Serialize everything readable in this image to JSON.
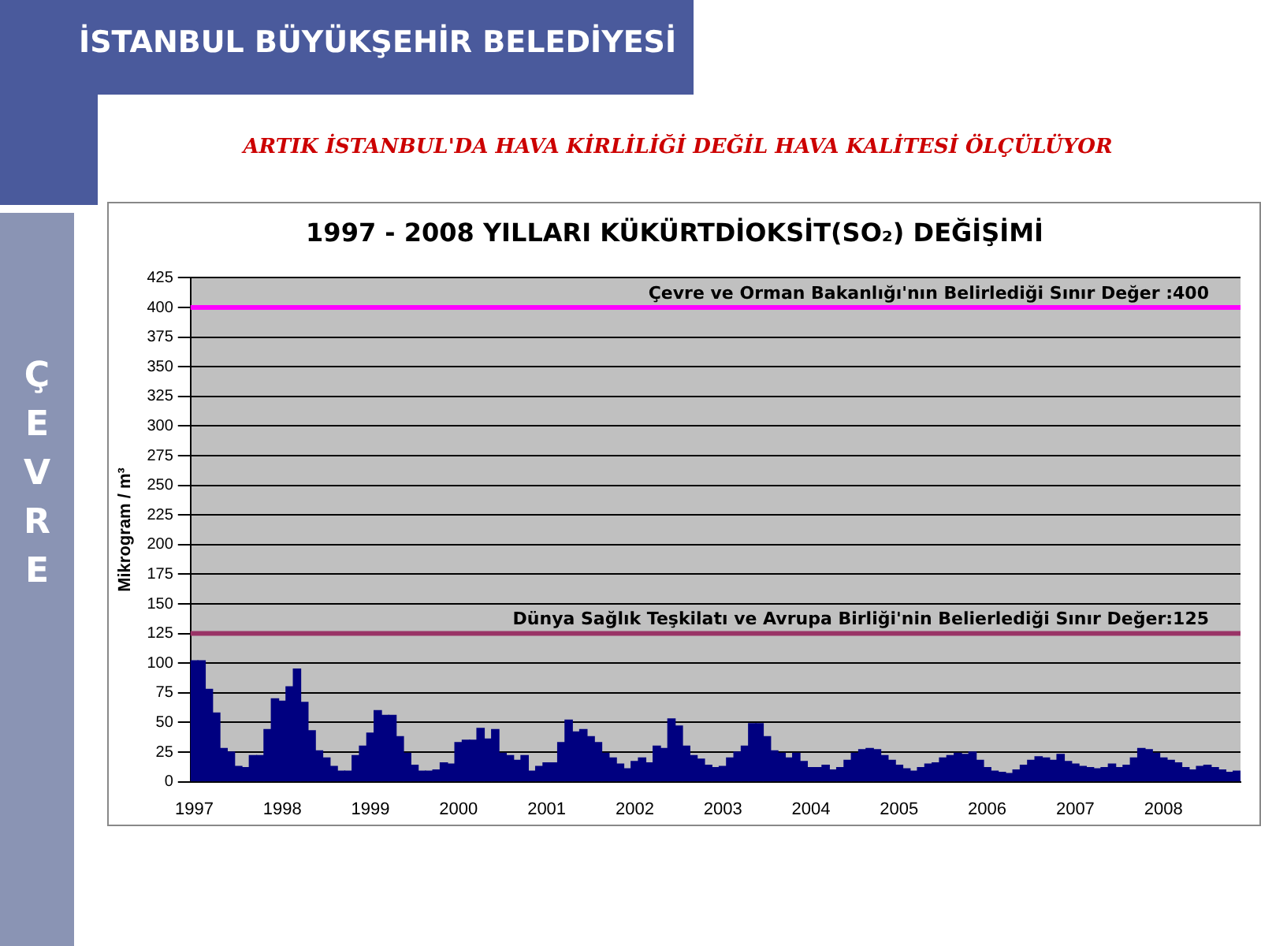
{
  "chart_data": {
    "type": "bar",
    "title": "1997 - 2008 YILLARI KÜKÜRTDİOKSİT(SO₂) DEĞİŞİMİ",
    "ylabel": "Mikrogram / m³",
    "categories": [
      "1997",
      null,
      null,
      null,
      null,
      null,
      null,
      null,
      null,
      null,
      null,
      null,
      "1998",
      null,
      null,
      null,
      null,
      null,
      null,
      null,
      null,
      null,
      null,
      null,
      "1999",
      null,
      null,
      null,
      null,
      null,
      null,
      null,
      null,
      null,
      null,
      null,
      "2000",
      null,
      null,
      null,
      null,
      null,
      null,
      null,
      null,
      null,
      null,
      null,
      "2001",
      null,
      null,
      null,
      null,
      null,
      null,
      null,
      null,
      null,
      null,
      null,
      "2002",
      null,
      null,
      null,
      null,
      null,
      null,
      null,
      null,
      null,
      null,
      null,
      "2003",
      null,
      null,
      null,
      null,
      null,
      null,
      null,
      null,
      null,
      null,
      null,
      "2004",
      null,
      null,
      null,
      null,
      null,
      null,
      null,
      null,
      null,
      null,
      null,
      "2005",
      null,
      null,
      null,
      null,
      null,
      null,
      null,
      null,
      null,
      null,
      null,
      "2006",
      null,
      null,
      null,
      null,
      null,
      null,
      null,
      null,
      null,
      null,
      null,
      "2007",
      null,
      null,
      null,
      null,
      null,
      null,
      null,
      null,
      null,
      null,
      null,
      "2008",
      null,
      null,
      null,
      null,
      null,
      null,
      null,
      null,
      null,
      null
    ],
    "values": [
      102,
      102,
      78,
      58,
      28,
      25,
      13,
      12,
      22,
      22,
      44,
      70,
      68,
      80,
      95,
      67,
      43,
      26,
      20,
      13,
      9,
      9,
      22,
      30,
      41,
      60,
      56,
      56,
      38,
      24,
      14,
      9,
      9,
      10,
      16,
      15,
      33,
      35,
      35,
      45,
      36,
      44,
      24,
      22,
      18,
      22,
      9,
      13,
      16,
      16,
      33,
      52,
      42,
      44,
      38,
      33,
      24,
      20,
      15,
      11,
      17,
      20,
      16,
      30,
      28,
      53,
      47,
      30,
      22,
      19,
      14,
      12,
      13,
      20,
      25,
      30,
      49,
      49,
      38,
      26,
      24,
      20,
      24,
      17,
      12,
      12,
      14,
      10,
      12,
      18,
      24,
      27,
      28,
      27,
      22,
      18,
      14,
      11,
      9,
      12,
      15,
      16,
      20,
      22,
      24,
      23,
      25,
      18,
      12,
      9,
      8,
      7,
      10,
      14,
      18,
      21,
      20,
      18,
      23,
      17,
      15,
      13,
      12,
      11,
      12,
      15,
      12,
      14,
      20,
      28,
      27,
      24,
      20,
      18,
      16,
      12,
      10,
      13,
      14,
      12,
      10,
      8,
      9
    ],
    "color": "#000080",
    "ylim": [
      0,
      425
    ],
    "yticks": [
      0,
      25,
      50,
      75,
      100,
      125,
      150,
      175,
      200,
      225,
      250,
      275,
      300,
      325,
      350,
      375,
      400,
      425
    ],
    "grid": "y",
    "ref_lines": [
      {
        "axis": "y",
        "value": 400,
        "label": "Çevre ve Orman Bakanlığı'nın Belirlediği Sınır Değer :400",
        "color": "#ff00ff"
      },
      {
        "axis": "y",
        "value": 125,
        "label": "Dünya Sağlık Teşkilatı ve Avrupa Birliği'nin Belierlediği Sınır Değer:125",
        "color": "#993366"
      }
    ],
    "annotations": [
      "İSTANBUL BÜYÜKŞEHİR BELEDİYESİ",
      "ARTIK İSTANBUL'DA HAVA KİRLİLİĞİ DEĞİL HAVA KALİTESİ ÖLÇÜLÜYOR",
      "ÇEVRE"
    ]
  }
}
